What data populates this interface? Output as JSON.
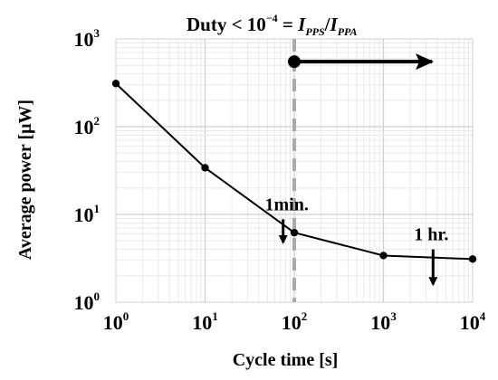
{
  "chart_data": {
    "type": "line",
    "x_scale": "log",
    "y_scale": "log",
    "xlim": [
      1,
      10000
    ],
    "ylim": [
      1,
      1000
    ],
    "grid": true,
    "xlabel": "Cycle time [s]",
    "ylabel": "Average power [μW]",
    "x_ticks": [
      {
        "base": "10",
        "exp": "0",
        "value": 1
      },
      {
        "base": "10",
        "exp": "1",
        "value": 10
      },
      {
        "base": "10",
        "exp": "2",
        "value": 100
      },
      {
        "base": "10",
        "exp": "3",
        "value": 1000
      },
      {
        "base": "10",
        "exp": "4",
        "value": 10000
      }
    ],
    "y_ticks": [
      {
        "base": "10",
        "exp": "0",
        "value": 1
      },
      {
        "base": "10",
        "exp": "1",
        "value": 10
      },
      {
        "base": "10",
        "exp": "2",
        "value": 100
      },
      {
        "base": "10",
        "exp": "3",
        "value": 1000
      }
    ],
    "series": [
      {
        "x": [
          1,
          10,
          100,
          1000,
          10000
        ],
        "y": [
          310,
          34,
          6.2,
          3.4,
          3.1
        ],
        "color": "#000000"
      }
    ],
    "reference_line": {
      "x": 100,
      "color": "#aaaaaa",
      "style": "dashed"
    },
    "title": {
      "prefix": "Duty < 10",
      "prefix_exp": "−4",
      "equals": " = ",
      "num_main": "I",
      "num_sub": "PPS",
      "slash": "/",
      "den_main": "I",
      "den_sub": "PPA"
    },
    "region_arrow": {
      "from_x": 100,
      "to_x": 3500,
      "y": 550
    },
    "annotations": [
      {
        "text": "1min.",
        "arrow_x": 75,
        "arrow_from_y": 4.8,
        "arrow_to_y": 8.8
      },
      {
        "text": "1 hr.",
        "arrow_x": 3600,
        "arrow_from_y": 1.6,
        "arrow_to_y": 4.0
      }
    ]
  }
}
